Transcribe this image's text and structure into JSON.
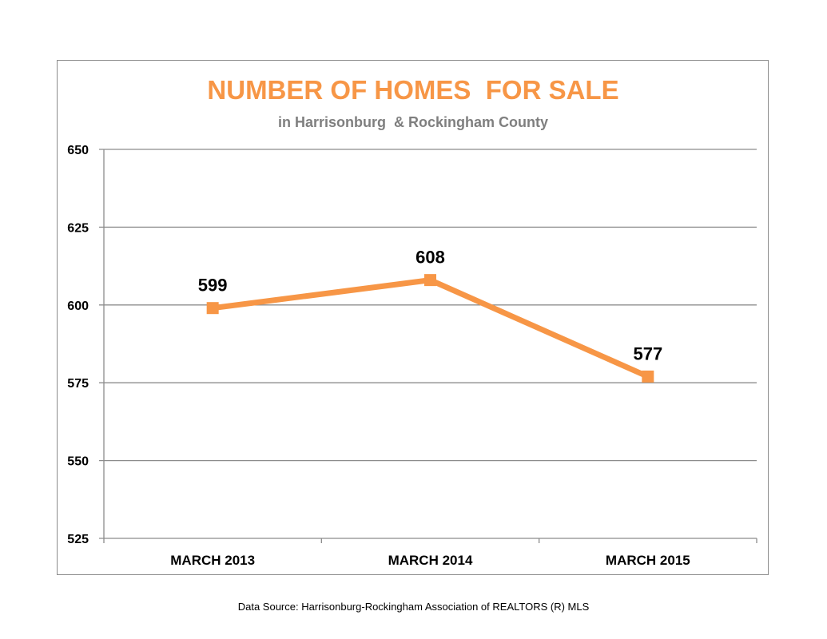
{
  "chart_data": {
    "type": "line",
    "title": "NUMBER OF HOMES  FOR SALE",
    "subtitle": "in Harrisonburg  & Rockingham County",
    "categories": [
      "MARCH 2013",
      "MARCH 2014",
      "MARCH 2015"
    ],
    "series": [
      {
        "values": [
          599,
          608,
          577
        ],
        "data_labels": [
          "599",
          "608",
          "577"
        ]
      }
    ],
    "ylim": [
      525,
      650
    ],
    "y_ticks": [
      525,
      550,
      575,
      600,
      625,
      650
    ],
    "y_tick_labels": [
      "525",
      "550",
      "575",
      "600",
      "625",
      "650"
    ],
    "grid": true,
    "legend": "none",
    "marker": "square",
    "colors": {
      "series": "#f79646",
      "title": "#f79646",
      "subtitle": "#7f7f7f"
    }
  },
  "footer": {
    "source": "Data Source: Harrisonburg-Rockingham Association of REALTORS (R) MLS"
  }
}
